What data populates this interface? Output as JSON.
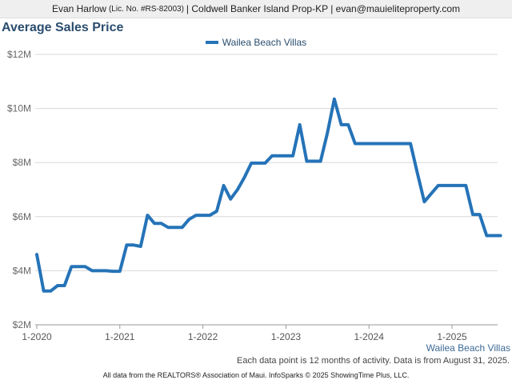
{
  "header": {
    "agent_name": "Evan Harlow",
    "license": "(Lic. No. #RS-82003)",
    "company_email": "| Coldwell Banker Island Prop-KP | evan@mauieliteproperty.com"
  },
  "note": "Each data point is 12 months of activity. Data is from August 31, 2025.",
  "footer": "All data from the REALTORS® Association of Maui. InfoSparks © 2025 ShowingTime Plus, LLC.",
  "colors": {
    "series": "#2573b8",
    "title": "#2a4d6e",
    "grid": "#d8d8d8"
  },
  "chart_data": {
    "type": "line",
    "title": "Average Sales Price",
    "xlabel": "",
    "ylabel": "",
    "grid": true,
    "legend_position": "top-center",
    "ylim": [
      2,
      12
    ],
    "xlim": [
      "2020-01",
      "2025-08"
    ],
    "y_ticks": [
      2,
      4,
      6,
      8,
      10,
      12
    ],
    "y_tick_labels": [
      "$2M",
      "$4M",
      "$6M",
      "$8M",
      "$10M",
      "$12M"
    ],
    "x_ticks": [
      "2020-01",
      "2021-01",
      "2022-01",
      "2023-01",
      "2024-01",
      "2025-01"
    ],
    "x_tick_labels": [
      "1-2020",
      "1-2021",
      "1-2022",
      "1-2023",
      "1-2024",
      "1-2025"
    ],
    "series_end_label": "Wailea Beach Villas",
    "series": [
      {
        "name": "Wailea Beach Villas",
        "unit": "$M",
        "x": [
          "2020-01",
          "2020-02",
          "2020-03",
          "2020-04",
          "2020-05",
          "2020-06",
          "2020-07",
          "2020-08",
          "2020-09",
          "2020-10",
          "2020-11",
          "2020-12",
          "2021-01",
          "2021-02",
          "2021-03",
          "2021-04",
          "2021-05",
          "2021-06",
          "2021-07",
          "2021-08",
          "2021-09",
          "2021-10",
          "2021-11",
          "2021-12",
          "2022-01",
          "2022-02",
          "2022-03",
          "2022-04",
          "2022-05",
          "2022-06",
          "2022-07",
          "2022-08",
          "2022-09",
          "2022-10",
          "2022-11",
          "2022-12",
          "2023-01",
          "2023-02",
          "2023-03",
          "2023-04",
          "2023-05",
          "2023-06",
          "2023-07",
          "2023-08",
          "2023-09",
          "2023-10",
          "2023-11",
          "2023-12",
          "2024-01",
          "2024-02",
          "2024-03",
          "2024-04",
          "2024-05",
          "2024-06",
          "2024-07",
          "2024-08",
          "2024-09",
          "2024-10",
          "2024-11",
          "2024-12",
          "2025-01",
          "2025-02",
          "2025-03",
          "2025-04",
          "2025-05",
          "2025-06",
          "2025-07",
          "2025-08"
        ],
        "values": [
          4.6,
          3.25,
          3.25,
          3.45,
          3.45,
          4.15,
          4.15,
          4.15,
          4.0,
          4.0,
          4.0,
          3.98,
          3.98,
          4.95,
          4.95,
          4.9,
          6.05,
          5.75,
          5.75,
          5.6,
          5.6,
          5.6,
          5.9,
          6.05,
          6.05,
          6.05,
          6.2,
          7.15,
          6.65,
          7.0,
          7.45,
          7.98,
          7.98,
          7.98,
          8.25,
          8.25,
          8.25,
          8.25,
          9.4,
          8.05,
          8.05,
          8.05,
          9.1,
          10.35,
          9.4,
          9.4,
          8.7,
          8.7,
          8.7,
          8.7,
          8.7,
          8.7,
          8.7,
          8.7,
          8.7,
          7.6,
          6.55,
          6.85,
          7.15,
          7.15,
          7.15,
          7.15,
          7.15,
          6.08,
          6.08,
          5.3,
          5.3,
          5.3
        ]
      }
    ]
  }
}
